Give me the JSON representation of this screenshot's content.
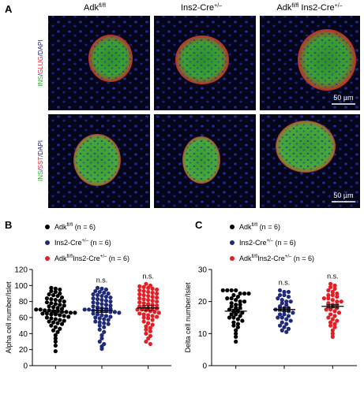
{
  "panel_a": {
    "letter": "A",
    "columns": [
      {
        "main": "Adk",
        "sup": "fl/fl",
        "main2": "",
        "sup2": ""
      },
      {
        "main": "Ins2-Cre",
        "sup": "+/–",
        "main2": "",
        "sup2": ""
      },
      {
        "main": "Adk",
        "sup": "fl/fl",
        "main2": " Ins2-Cre",
        "sup2": "+/–"
      }
    ],
    "rows": [
      {
        "label_parts": [
          {
            "text": "INS",
            "color": "#2ea32e"
          },
          {
            "text": "/",
            "color": "#1a1a80"
          },
          {
            "text": "GLUG",
            "color": "#e8202c"
          },
          {
            "text": "/DAPI",
            "color": "#1a1a80"
          }
        ],
        "scalebar": "50 µm"
      },
      {
        "label_parts": [
          {
            "text": "INS",
            "color": "#2ea32e"
          },
          {
            "text": "/",
            "color": "#1a1a80"
          },
          {
            "text": "SST",
            "color": "#e8202c"
          },
          {
            "text": "/DAPI",
            "color": "#1a1a80"
          }
        ],
        "scalebar": "50 µm"
      }
    ]
  },
  "chart_data": [
    {
      "panel": "B",
      "type": "scatter",
      "ylabel": "Alpha cell number/Islet",
      "ylim": [
        0,
        120
      ],
      "yticks": [
        0,
        20,
        40,
        60,
        80,
        100,
        120
      ],
      "legend": [
        {
          "main": "Adk",
          "sup": "fl/fl",
          "mid": "",
          "sup2": "",
          "n": "(n = 6)",
          "color": "#000000"
        },
        {
          "main": "Ins2-Cre",
          "sup": "+/–",
          "mid": "",
          "sup2": "",
          "n": "(n = 6)",
          "color": "#1f2a7a"
        },
        {
          "main": "Adk",
          "sup": "fl/fl",
          "mid": "Ins2-Cre",
          "sup2": "+/–",
          "n": "(n = 6)",
          "color": "#e31e24"
        }
      ],
      "series": [
        {
          "color": "#000000",
          "annotation": "",
          "mean": 67,
          "sem": 2.5,
          "values": [
            97,
            96,
            95,
            93,
            92,
            90,
            89,
            88,
            87,
            85,
            84,
            83,
            82,
            81,
            80,
            79,
            78,
            77,
            76,
            75,
            74,
            73,
            72,
            71,
            70,
            70,
            69,
            69,
            68,
            68,
            67,
            67,
            66,
            66,
            65,
            65,
            64,
            64,
            63,
            62,
            61,
            60,
            59,
            58,
            57,
            56,
            55,
            54,
            53,
            52,
            50,
            48,
            46,
            44,
            42,
            38,
            34,
            30,
            25,
            18
          ]
        },
        {
          "color": "#1f2a7a",
          "annotation": "n.s.",
          "mean": 69,
          "sem": 2.5,
          "values": [
            97,
            96,
            95,
            93,
            92,
            91,
            90,
            89,
            88,
            87,
            86,
            85,
            84,
            83,
            82,
            81,
            80,
            79,
            78,
            77,
            76,
            75,
            74,
            73,
            72,
            71,
            71,
            70,
            70,
            69,
            69,
            68,
            68,
            67,
            67,
            66,
            65,
            64,
            63,
            62,
            61,
            60,
            59,
            58,
            57,
            55,
            54,
            53,
            52,
            50,
            48,
            45,
            42,
            38,
            34,
            30,
            27,
            24,
            21
          ]
        },
        {
          "color": "#e31e24",
          "annotation": "n.s.",
          "mean": 72,
          "sem": 3,
          "values": [
            102,
            100,
            99,
            98,
            97,
            96,
            95,
            94,
            93,
            92,
            91,
            90,
            89,
            88,
            87,
            86,
            85,
            84,
            83,
            82,
            81,
            80,
            79,
            78,
            77,
            76,
            75,
            74,
            73,
            72,
            72,
            71,
            70,
            70,
            69,
            68,
            67,
            66,
            65,
            64,
            63,
            62,
            61,
            60,
            59,
            57,
            55,
            53,
            51,
            49,
            47,
            45,
            43,
            40,
            37,
            34,
            30,
            27
          ]
        }
      ]
    },
    {
      "panel": "C",
      "type": "scatter",
      "ylabel": "Delta cell number/Islet",
      "ylim": [
        0,
        30
      ],
      "yticks": [
        0,
        10,
        20,
        30
      ],
      "legend": [
        {
          "main": "Adk",
          "sup": "fl/fl",
          "mid": "",
          "sup2": "",
          "n": "(n = 6)",
          "color": "#000000"
        },
        {
          "main": "Ins2-Cre",
          "sup": "+/–",
          "mid": "",
          "sup2": "",
          "n": "(n = 6)",
          "color": "#1f2a7a"
        },
        {
          "main": "Adk",
          "sup": "fl/fl",
          "mid": "Ins2-Cre",
          "sup2": "+/–",
          "n": "(n = 6)",
          "color": "#e31e24"
        }
      ],
      "series": [
        {
          "color": "#000000",
          "annotation": "",
          "mean": 17,
          "sem": 0.6,
          "values": [
            23.5,
            23.5,
            23.5,
            23.5,
            22.5,
            22.5,
            22.5,
            22,
            21.5,
            21,
            21,
            20.5,
            20,
            20,
            19.5,
            19,
            19,
            18.5,
            18,
            18,
            17.5,
            17,
            17,
            16.5,
            16,
            16,
            15.5,
            15,
            15,
            14.5,
            14,
            13.5,
            13,
            12.5,
            12,
            11,
            10,
            9,
            7.5
          ]
        },
        {
          "color": "#1f2a7a",
          "annotation": "n.s.",
          "mean": 17.5,
          "sem": 0.5,
          "values": [
            23.5,
            23,
            23,
            22,
            22,
            21.5,
            21,
            20.5,
            20,
            20,
            19.5,
            19,
            18.5,
            18,
            18,
            17.5,
            17.5,
            17,
            17,
            16.5,
            16,
            16,
            15.5,
            15,
            15,
            14.5,
            14,
            13.5,
            13,
            12.5,
            12,
            11.5,
            11,
            10.5
          ]
        },
        {
          "color": "#e31e24",
          "annotation": "n.s.",
          "mean": 18.5,
          "sem": 0.5,
          "values": [
            25.5,
            25,
            24.5,
            24,
            23.5,
            23,
            22.5,
            22,
            22,
            21.5,
            21,
            21,
            20.5,
            20,
            20,
            19.5,
            19,
            19,
            18.5,
            18.5,
            18,
            17.5,
            17.5,
            17,
            16.5,
            16,
            15.5,
            15,
            14.5,
            14,
            13.5,
            13,
            12.5,
            12,
            11,
            10,
            9
          ]
        }
      ]
    }
  ]
}
